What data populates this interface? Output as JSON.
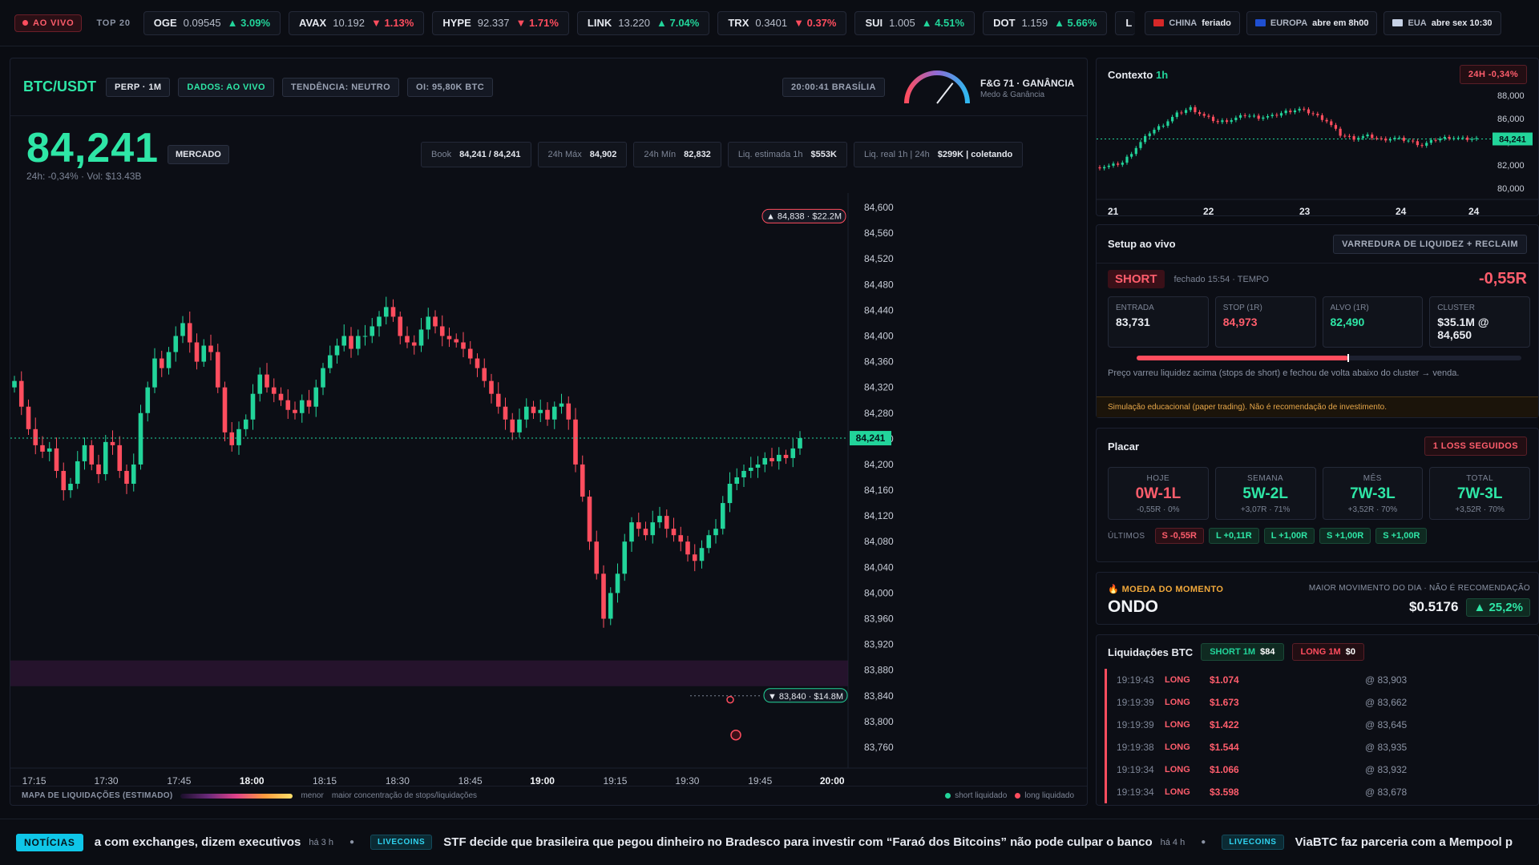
{
  "topbar": {
    "live_label": "AO VIVO",
    "top20_label": "TOP 20",
    "tickers": [
      {
        "sym": "OGE",
        "px": "0.09545",
        "ch": "3.09%",
        "dir": "up"
      },
      {
        "sym": "AVAX",
        "px": "10.192",
        "ch": "1.13%",
        "dir": "down"
      },
      {
        "sym": "HYPE",
        "px": "92.337",
        "ch": "1.71%",
        "dir": "down"
      },
      {
        "sym": "LINK",
        "px": "13.220",
        "ch": "7.04%",
        "dir": "up"
      },
      {
        "sym": "TRX",
        "px": "0.3401",
        "ch": "0.37%",
        "dir": "down"
      },
      {
        "sym": "SUI",
        "px": "1.005",
        "ch": "4.51%",
        "dir": "up"
      },
      {
        "sym": "DOT",
        "px": "1.159",
        "ch": "5.66%",
        "dir": "up"
      },
      {
        "sym": "L",
        "px": "",
        "ch": "",
        "dir": ""
      }
    ],
    "markets": [
      {
        "name": "CHINA",
        "status": "feriado",
        "flag_color": "#d62828"
      },
      {
        "name": "EUROPA",
        "status": "abre em 8h00",
        "flag_color": "#1f4fd1"
      },
      {
        "name": "EUA",
        "status": "abre sex 10:30",
        "flag_color": "#c7d2e6"
      }
    ]
  },
  "main": {
    "pair": "BTC/USDT",
    "chip_type": "PERP · 1M",
    "chip_data": "DADOS: AO VIVO",
    "chip_trend": "TENDÊNCIA: NEUTRO",
    "chip_oi": "OI: 95,80K BTC",
    "clock": "20:00:41 BRASÍLIA",
    "fg_title": "F&G 71 · GANÂNCIA",
    "fg_sub": "Medo & Ganância",
    "fg_value": 71,
    "price": "84,241",
    "mode": "MERCADO",
    "sub": "24h: -0,34% · Vol: $13.43B",
    "stats": [
      {
        "k": "Book",
        "v": "84,241 / 84,241"
      },
      {
        "k": "24h Máx",
        "v": "84,902"
      },
      {
        "k": "24h Mín",
        "v": "82,832"
      },
      {
        "k": "Liq. estimada 1h",
        "v": "$553K"
      },
      {
        "k": "Liq. real 1h | 24h",
        "v": "$299K | coletando"
      }
    ],
    "legend": {
      "title": "MAPA DE LIQUIDAÇÕES (ESTIMADO)",
      "menor": "menor",
      "maior": "maior concentração de stops/liquidações",
      "short": "short liquidado",
      "long": "long liquidado"
    }
  },
  "chart_data": {
    "type": "candlestick",
    "x_ticks": [
      "17:15",
      "17:30",
      "17:45",
      "18:00",
      "18:15",
      "18:30",
      "18:45",
      "19:00",
      "19:15",
      "19:30",
      "19:45",
      "20:00"
    ],
    "y_ticks": [
      84600,
      84560,
      84520,
      84480,
      84440,
      84400,
      84360,
      84320,
      84280,
      84240,
      84200,
      84160,
      84120,
      84080,
      84040,
      84000,
      83960,
      83920,
      83880,
      83840,
      83800,
      83760
    ],
    "ylim": [
      83740,
      84610
    ],
    "last_price": 84241,
    "last_price_label": "84,241",
    "marker_high": "84,838 · $22.2M",
    "marker_low": "83,840 · $14.8M",
    "closes": [
      84330,
      84290,
      84255,
      84230,
      84220,
      84225,
      84190,
      84160,
      84170,
      84205,
      84230,
      84200,
      84185,
      84235,
      84230,
      84190,
      84170,
      84200,
      84280,
      84320,
      84365,
      84350,
      84375,
      84400,
      84420,
      84390,
      84360,
      84385,
      84375,
      84320,
      84250,
      84230,
      84255,
      84270,
      84310,
      84340,
      84320,
      84310,
      84300,
      84285,
      84280,
      84300,
      84290,
      84320,
      84350,
      84370,
      84385,
      84400,
      84380,
      84400,
      84400,
      84415,
      84430,
      84445,
      84430,
      84400,
      84390,
      84385,
      84410,
      84430,
      84415,
      84400,
      84395,
      84390,
      84380,
      84365,
      84350,
      84330,
      84310,
      84290,
      84270,
      84250,
      84270,
      84290,
      84280,
      84285,
      84270,
      84290,
      84295,
      84270,
      84200,
      84150,
      84080,
      84030,
      83960,
      84000,
      84030,
      84080,
      84110,
      84100,
      84090,
      84110,
      84120,
      84100,
      84090,
      84080,
      84060,
      84050,
      84070,
      84090,
      84100,
      84140,
      84170,
      84180,
      84190,
      84195,
      84200,
      84210,
      84205,
      84215,
      84210,
      84225,
      84241
    ]
  },
  "context": {
    "title": "Contexto",
    "tf": "1h",
    "badge": "24H -0,34%",
    "x_ticks": [
      "21",
      "22",
      "23",
      "24",
      "24"
    ],
    "y_ticks": [
      "88,000",
      "86,000",
      "84,000",
      "82,000",
      "80,000"
    ],
    "last": "84,241"
  },
  "setup": {
    "title": "Setup ao vivo",
    "badge": "VARREDURA DE LIQUIDEZ + RECLAIM",
    "side": "SHORT",
    "closed": "fechado 15:54 · TEMPO",
    "result": "-0,55R",
    "boxes": [
      {
        "k": "ENTRADA",
        "v": "83,731",
        "c": "#e8ebf1"
      },
      {
        "k": "STOP (1R)",
        "v": "84,973",
        "c": "#ff5d6c"
      },
      {
        "k": "ALVO (1R)",
        "v": "82,490",
        "c": "#2ee6a6"
      },
      {
        "k": "CLUSTER",
        "v": "$35.1M @ 84,650",
        "c": "#e8ebf1"
      }
    ],
    "progress": 0.55,
    "desc": "Preço varreu liquidez acima (stops de short) e fechou de volta abaixo do cluster → venda.",
    "disclaimer": "Simulação educacional (paper trading). Não é recomendação de investimento."
  },
  "placar": {
    "title": "Placar",
    "badge": "1 LOSS SEGUIDOS",
    "cards": [
      {
        "k": "HOJE",
        "v": "0W-1L",
        "s": "-0,55R · 0%",
        "c": "#ff5d6c"
      },
      {
        "k": "SEMANA",
        "v": "5W-2L",
        "s": "+3,07R · 71%",
        "c": "#2ee6a6"
      },
      {
        "k": "MÊS",
        "v": "7W-3L",
        "s": "+3,52R · 70%",
        "c": "#2ee6a6"
      },
      {
        "k": "TOTAL",
        "v": "7W-3L",
        "s": "+3,52R · 70%",
        "c": "#2ee6a6"
      }
    ],
    "ultimos_label": "ÚLTIMOS",
    "ultimos": [
      {
        "t": "S -0,55R",
        "c": "s"
      },
      {
        "t": "L +0,11R",
        "c": "l"
      },
      {
        "t": "L +1,00R",
        "c": "l"
      },
      {
        "t": "S +1,00R",
        "c": "l"
      },
      {
        "t": "S +1,00R",
        "c": "l"
      }
    ]
  },
  "moeda": {
    "label": "MOEDA DO MOMENTO",
    "right": "MAIOR MOVIMENTO DO DIA · NÃO É RECOMENDAÇÃO",
    "sym": "ONDO",
    "price": "$0.5176",
    "change": "25,2%"
  },
  "liq": {
    "title": "Liquidações BTC",
    "short_lbl": "SHORT 1M",
    "short_v": "$84",
    "long_lbl": "LONG 1M",
    "long_v": "$0",
    "rows": [
      {
        "t": "19:19:43",
        "s": "LONG",
        "a": "$1.074",
        "p": "@ 83,903"
      },
      {
        "t": "19:19:39",
        "s": "LONG",
        "a": "$1.673",
        "p": "@ 83,662"
      },
      {
        "t": "19:19:39",
        "s": "LONG",
        "a": "$1.422",
        "p": "@ 83,645"
      },
      {
        "t": "19:19:38",
        "s": "LONG",
        "a": "$1.544",
        "p": "@ 83,935"
      },
      {
        "t": "19:19:34",
        "s": "LONG",
        "a": "$1.066",
        "p": "@ 83,932"
      },
      {
        "t": "19:19:34",
        "s": "LONG",
        "a": "$3.598",
        "p": "@ 83,678"
      }
    ]
  },
  "news": {
    "tag": "NOTÍCIAS",
    "items": [
      {
        "src": "",
        "txt": "a com exchanges, dizem executivos",
        "ago": "há 3 h"
      },
      {
        "src": "LIVECOINS",
        "txt": "STF decide que brasileira que pegou dinheiro no Bradesco para investir com “Faraó dos Bitcoins” não pode culpar o banco",
        "ago": "há 4 h"
      },
      {
        "src": "LIVECOINS",
        "txt": "ViaBTC faz parceria com a Mempool p",
        "ago": ""
      }
    ]
  },
  "colors": {
    "up": "#22d49a",
    "down": "#ff4d5e",
    "accent": "#2ee6a6",
    "news": "#0fc6e8"
  }
}
